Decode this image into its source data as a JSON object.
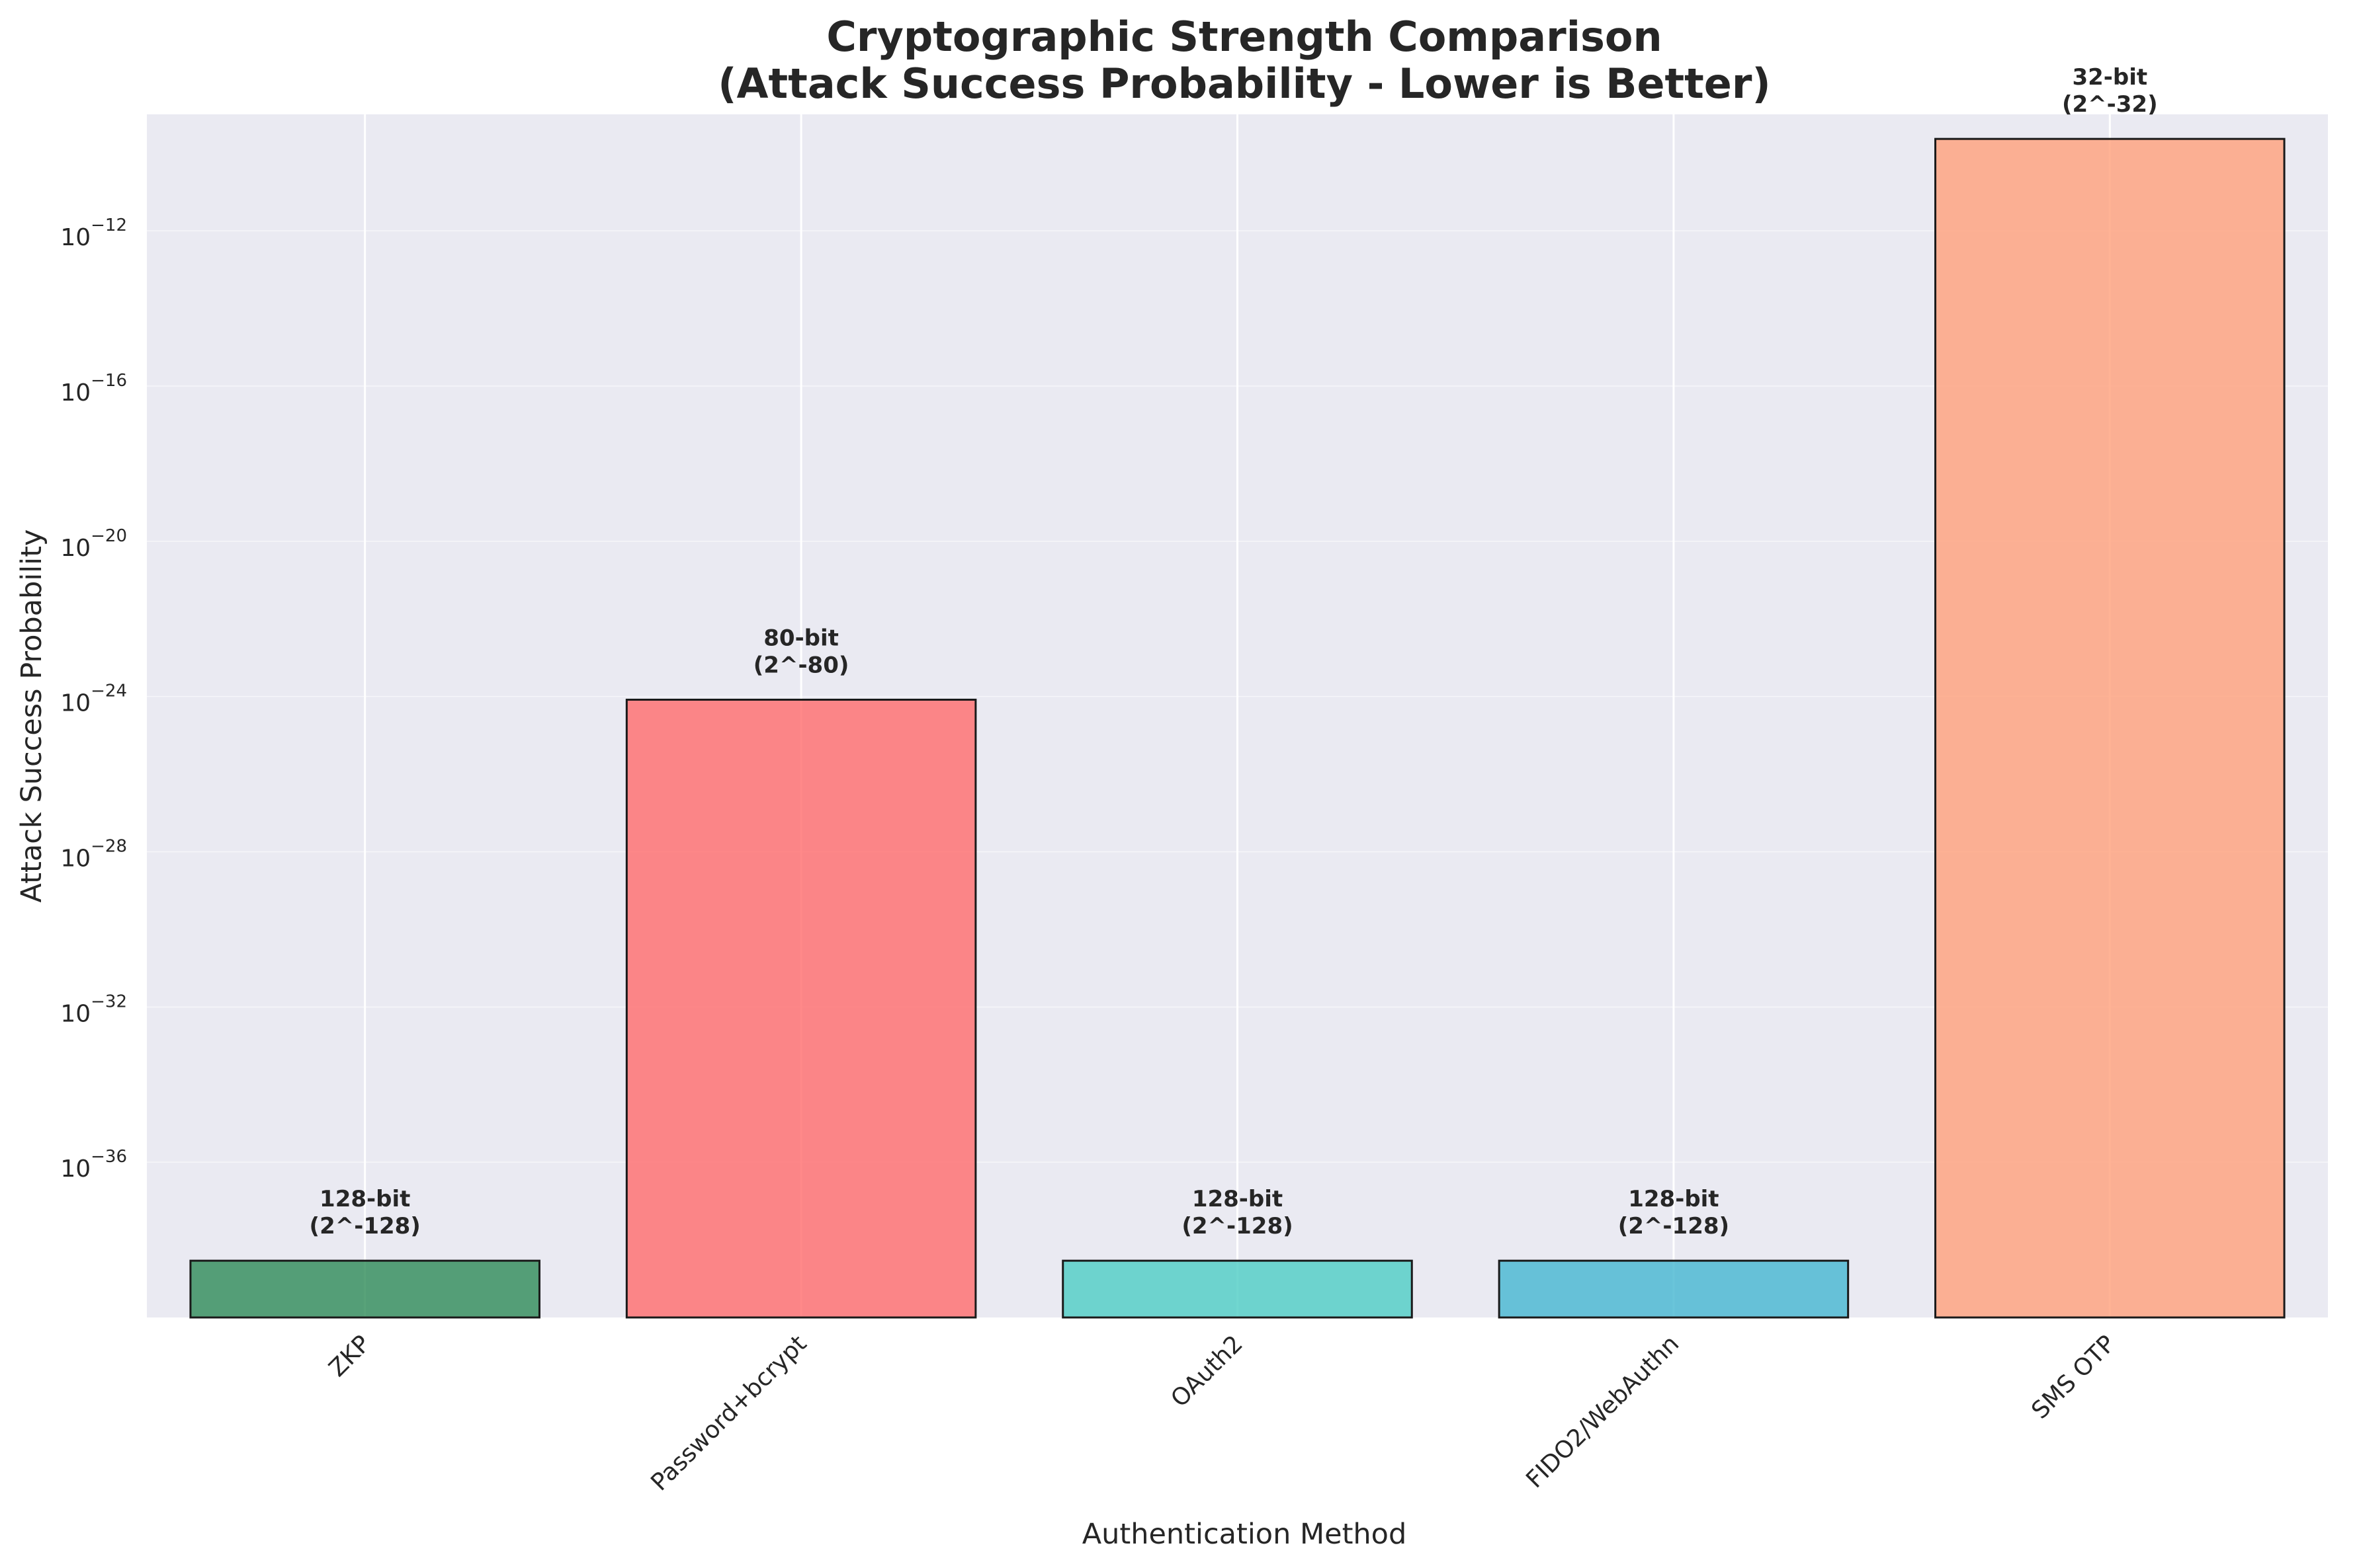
{
  "chart_data": {
    "type": "bar",
    "title": "Cryptographic Strength Comparison\n(Attack Success Probability - Lower is Better)",
    "xlabel": "Authentication Method",
    "ylabel": "Attack Success Probability",
    "yscale": "log",
    "ylim": [
      1e-40,
      1e-09
    ],
    "yticks": [
      {
        "value": 1e-12,
        "base": "10",
        "exp": "−12"
      },
      {
        "value": 1e-16,
        "base": "10",
        "exp": "−16"
      },
      {
        "value": 1e-20,
        "base": "10",
        "exp": "−20"
      },
      {
        "value": 1e-24,
        "base": "10",
        "exp": "−24"
      },
      {
        "value": 1e-28,
        "base": "10",
        "exp": "−28"
      },
      {
        "value": 1e-32,
        "base": "10",
        "exp": "−32"
      },
      {
        "value": 1e-36,
        "base": "10",
        "exp": "−36"
      }
    ],
    "categories": [
      "ZKP",
      "Password+bcrypt",
      "OAuth2",
      "FIDO2/WebAuthn",
      "SMS OTP"
    ],
    "values": [
      2.9e-39,
      8.27e-25,
      2.9e-39,
      2.9e-39,
      2.33e-10
    ],
    "labels": [
      [
        "128-bit",
        "(2^-128)"
      ],
      [
        "80-bit",
        "(2^-80)"
      ],
      [
        "128-bit",
        "(2^-128)"
      ],
      [
        "128-bit",
        "(2^-128)"
      ],
      [
        "32-bit",
        "(2^-32)"
      ]
    ],
    "colors": [
      "#2e8b57",
      "#ff6b6b",
      "#4ecdc4",
      "#45b7d1",
      "#ffa07a"
    ],
    "grid": true,
    "background": "#eaeaf2"
  }
}
